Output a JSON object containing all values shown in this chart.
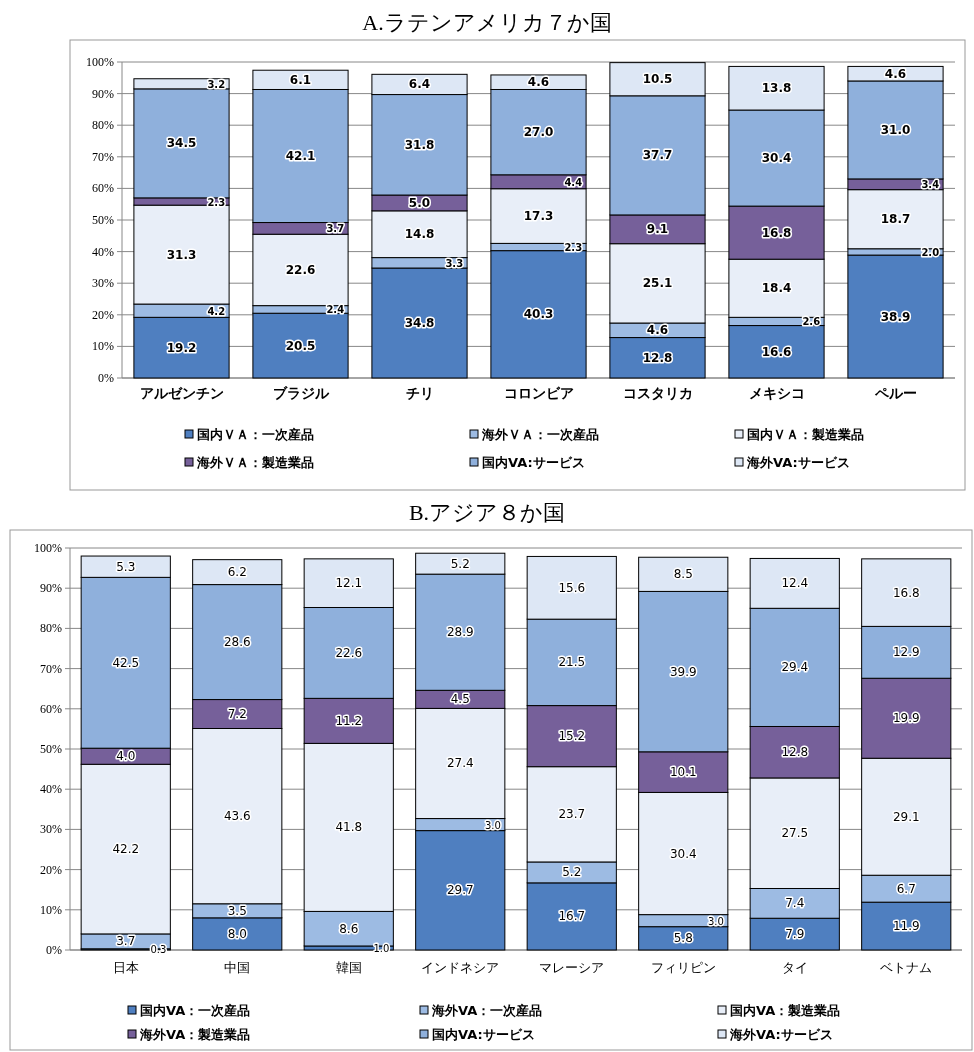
{
  "chart_data": [
    {
      "type": "bar",
      "stacked": true,
      "title": "A.ラテンアメリカ７か国",
      "categories": [
        "アルゼンチン",
        "ブラジル",
        "チリ",
        "コロンビア",
        "コスタリカ",
        "メキシコ",
        "ペルー"
      ],
      "ylim": [
        0,
        100
      ],
      "yticks": [
        {
          "value": 0,
          "label": "0%"
        },
        {
          "value": 10,
          "label": "10%"
        },
        {
          "value": 20,
          "label": "20%"
        },
        {
          "value": 30,
          "label": "30%"
        },
        {
          "value": 40,
          "label": "40%"
        },
        {
          "value": 50,
          "label": "50%"
        },
        {
          "value": 60,
          "label": "60%"
        },
        {
          "value": 70,
          "label": "70%"
        },
        {
          "value": 80,
          "label": "80%"
        },
        {
          "value": 90,
          "label": "90%"
        },
        {
          "value": 100,
          "label": "100%"
        }
      ],
      "grid": "y",
      "legend": "bottom",
      "series": [
        {
          "name": "国内ＶＡ：一次産品",
          "color": "#4f7fc0",
          "values": [
            19.2,
            20.5,
            34.8,
            40.3,
            12.8,
            16.6,
            38.9
          ],
          "value_labels": [
            "19.2",
            "20.5",
            "34.8",
            "40.3",
            "12.8",
            "16.6",
            "38.9"
          ]
        },
        {
          "name": "海外ＶＡ：一次産品",
          "color": "#9dbbe3",
          "values": [
            4.2,
            2.4,
            3.3,
            2.3,
            4.6,
            2.6,
            2.0
          ],
          "value_labels": [
            "4.2",
            "2.4",
            "3.3",
            "2.3",
            "4.6",
            "2.6",
            "2.0"
          ]
        },
        {
          "name": "国内ＶＡ：製造業品",
          "color": "#e8eef8",
          "values": [
            31.3,
            22.6,
            14.8,
            17.3,
            25.1,
            18.4,
            18.7
          ],
          "value_labels": [
            "31.3",
            "22.6",
            "14.8",
            "17.3",
            "25.1",
            "18.4",
            "18.7"
          ]
        },
        {
          "name": "海外ＶＡ：製造業品",
          "color": "#76609a",
          "values": [
            2.3,
            3.7,
            5.0,
            4.4,
            9.1,
            16.8,
            3.4
          ],
          "value_labels": [
            "2.3",
            "3.7",
            "5.0",
            "4.4",
            "9.1",
            "16.8",
            "3.4"
          ]
        },
        {
          "name": "国内VA:サービス",
          "color": "#8fb0dc",
          "values": [
            34.5,
            42.1,
            31.8,
            27.0,
            37.7,
            30.4,
            31.0
          ],
          "value_labels": [
            "34.5",
            "42.1",
            "31.8",
            "27.0",
            "37.7",
            "30.4",
            "31.0"
          ]
        },
        {
          "name": "海外VA:サービス",
          "color": "#dde7f5",
          "values": [
            3.2,
            6.1,
            6.4,
            4.6,
            10.5,
            13.8,
            4.6
          ],
          "value_labels": [
            "3.2",
            "6.1",
            "6.4",
            "4.6",
            "10.5",
            "13.8",
            "4.6"
          ]
        }
      ]
    },
    {
      "type": "bar",
      "stacked": true,
      "title": "B.アジア８か国",
      "categories": [
        "日本",
        "中国",
        "韓国",
        "インドネシア",
        "マレーシア",
        "フィリピン",
        "タイ",
        "ベトナム"
      ],
      "ylim": [
        0,
        100
      ],
      "yticks": [
        {
          "value": 0,
          "label": "0%"
        },
        {
          "value": 10,
          "label": "10%"
        },
        {
          "value": 20,
          "label": "20%"
        },
        {
          "value": 30,
          "label": "30%"
        },
        {
          "value": 40,
          "label": "40%"
        },
        {
          "value": 50,
          "label": "50%"
        },
        {
          "value": 60,
          "label": "60%"
        },
        {
          "value": 70,
          "label": "70%"
        },
        {
          "value": 80,
          "label": "80%"
        },
        {
          "value": 90,
          "label": "90%"
        },
        {
          "value": 100,
          "label": "100%"
        }
      ],
      "grid": "y",
      "legend": "bottom",
      "series": [
        {
          "name": "国内VA：一次産品",
          "color": "#4f7fc0",
          "values": [
            0.3,
            8.0,
            1.0,
            29.7,
            16.7,
            5.8,
            7.9,
            11.9
          ],
          "value_labels": [
            "0.3",
            "8.0",
            "1.0",
            "29.7",
            "16.7",
            "5.8",
            "7.9",
            "11.9"
          ]
        },
        {
          "name": "海外VA：一次産品",
          "color": "#9dbbe3",
          "values": [
            3.7,
            3.5,
            8.6,
            3.0,
            5.2,
            3.0,
            7.4,
            6.7
          ],
          "value_labels": [
            "3.7",
            "3.5",
            "8.6",
            "3.0",
            "5.2",
            "3.0",
            "7.4",
            "6.7"
          ]
        },
        {
          "name": "国内VA：製造業品",
          "color": "#e8eef8",
          "values": [
            42.2,
            43.6,
            41.8,
            27.4,
            23.7,
            30.4,
            27.5,
            29.1
          ],
          "value_labels": [
            "42.2",
            "43.6",
            "41.8",
            "27.4",
            "23.7",
            "30.4",
            "27.5",
            "29.1"
          ]
        },
        {
          "name": "海外VA：製造業品",
          "color": "#76609a",
          "values": [
            4.0,
            7.2,
            11.2,
            4.5,
            15.2,
            10.1,
            12.8,
            19.9
          ],
          "value_labels": [
            "4.0",
            "7.2",
            "11.2",
            "4.5",
            "15.2",
            "10.1",
            "12.8",
            "19.9"
          ]
        },
        {
          "name": "国内VA:サービス",
          "color": "#8fb0dc",
          "values": [
            42.5,
            28.6,
            22.6,
            28.9,
            21.5,
            39.9,
            29.4,
            12.9
          ],
          "value_labels": [
            "42.5",
            "28.6",
            "22.6",
            "28.9",
            "21.5",
            "39.9",
            "29.4",
            "12.9"
          ]
        },
        {
          "name": "海外VA:サービス",
          "color": "#dde7f5",
          "values": [
            5.3,
            6.2,
            12.1,
            5.2,
            15.6,
            8.5,
            12.4,
            16.8
          ],
          "value_labels": [
            "5.3",
            "6.2",
            "12.1",
            "5.2",
            "15.6",
            "8.5",
            "12.4",
            "16.8"
          ]
        }
      ]
    }
  ]
}
